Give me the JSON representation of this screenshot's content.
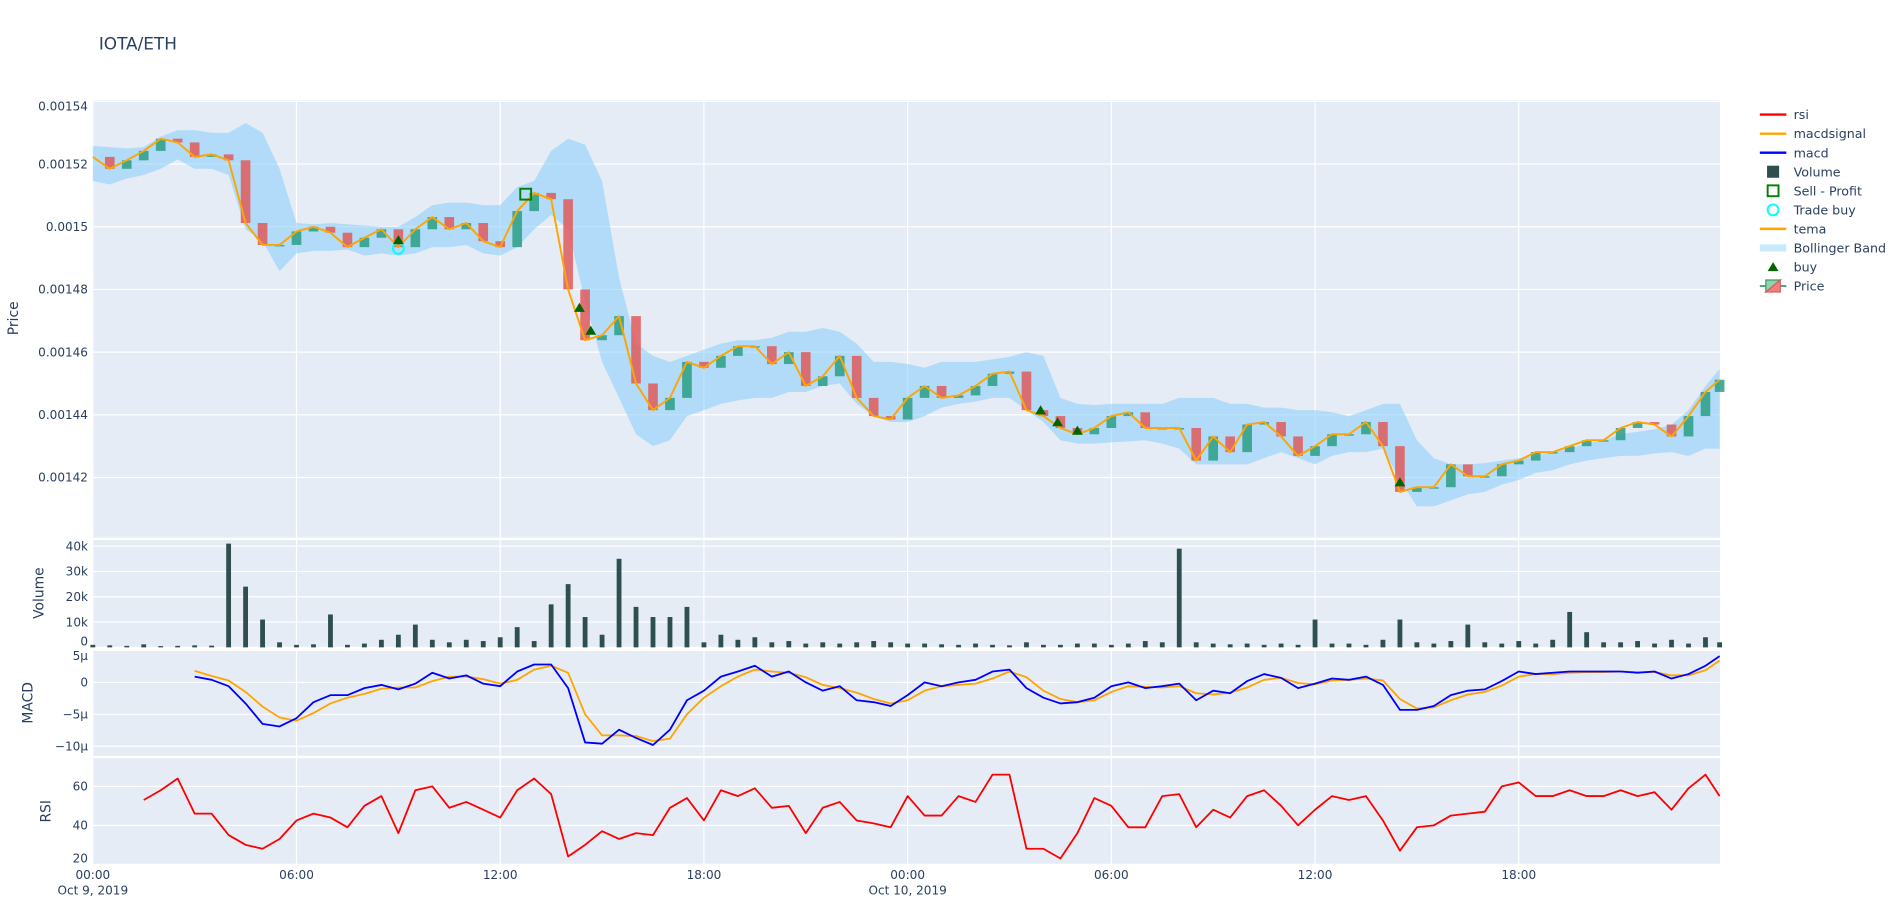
{
  "chart_data": {
    "type": "candlestick",
    "title": "IOTA/ETH",
    "axes": {
      "price": {
        "label": "Price",
        "ylim": [
          0.0014008,
          0.0015404
        ],
        "ticks": [
          0.00142,
          0.00144,
          0.00146,
          0.00148,
          0.0015,
          0.00152,
          0.00154
        ],
        "tick_labels": [
          "0.00142",
          "0.00144",
          "0.00146",
          "0.00148",
          "0.0015",
          "0.00152",
          "0.00154"
        ]
      },
      "volume": {
        "label": "Volume",
        "ylim": [
          0,
          42400
        ],
        "ticks": [
          0,
          10000,
          20000,
          30000,
          40000
        ],
        "tick_labels": [
          "0",
          "10k",
          "20k",
          "30k",
          "40k"
        ]
      },
      "macd": {
        "label": "MACD",
        "ylim": [
          -1.15e-05,
          5.1e-06
        ],
        "ticks": [
          -1e-05,
          -5e-06,
          0,
          5e-06
        ],
        "tick_labels": [
          "−10µ",
          "−5µ",
          "0",
          "5µ"
        ]
      },
      "rsi": {
        "label": "RSI",
        "ylim": [
          20,
          74.4
        ],
        "ticks": [
          20,
          40,
          60
        ],
        "tick_labels": [
          "20",
          "40",
          "60"
        ]
      },
      "x": {
        "ticks": [
          "2019-10-09 00:00",
          "2019-10-09 06:00",
          "2019-10-09 12:00",
          "2019-10-09 18:00",
          "2019-10-10 00:00",
          "2019-10-10 06:00",
          "2019-10-10 12:00",
          "2019-10-10 18:00"
        ],
        "tick_labels": [
          "00:00",
          "06:00",
          "12:00",
          "18:00",
          "00:00",
          "06:00",
          "12:00",
          "18:00"
        ],
        "tick_sublabels": [
          "Oct 9, 2019",
          "",
          "",
          "",
          "Oct 10, 2019",
          "",
          "",
          ""
        ]
      }
    },
    "grid": true,
    "legend_position": "right",
    "x": [
      "2019-10-09 00:00",
      "2019-10-09 00:30",
      "2019-10-09 01:00",
      "2019-10-09 01:30",
      "2019-10-09 02:00",
      "2019-10-09 02:30",
      "2019-10-09 03:00",
      "2019-10-09 03:30",
      "2019-10-09 04:00",
      "2019-10-09 04:30",
      "2019-10-09 05:00",
      "2019-10-09 05:30",
      "2019-10-09 06:00",
      "2019-10-09 06:30",
      "2019-10-09 07:00",
      "2019-10-09 07:30",
      "2019-10-09 08:00",
      "2019-10-09 08:30",
      "2019-10-09 09:00",
      "2019-10-09 09:30",
      "2019-10-09 10:00",
      "2019-10-09 10:30",
      "2019-10-09 11:00",
      "2019-10-09 11:30",
      "2019-10-09 12:00",
      "2019-10-09 12:30",
      "2019-10-09 13:00",
      "2019-10-09 13:30",
      "2019-10-09 14:00",
      "2019-10-09 14:30",
      "2019-10-09 15:00",
      "2019-10-09 15:30",
      "2019-10-09 16:00",
      "2019-10-09 16:30",
      "2019-10-09 17:00",
      "2019-10-09 17:30",
      "2019-10-09 18:00",
      "2019-10-09 18:30",
      "2019-10-09 19:00",
      "2019-10-09 19:30",
      "2019-10-09 20:00",
      "2019-10-09 20:30",
      "2019-10-09 21:00",
      "2019-10-09 21:30",
      "2019-10-09 22:00",
      "2019-10-09 22:30",
      "2019-10-09 23:00",
      "2019-10-09 23:30",
      "2019-10-10 00:00",
      "2019-10-10 00:30",
      "2019-10-10 01:00",
      "2019-10-10 01:30",
      "2019-10-10 02:00",
      "2019-10-10 02:30",
      "2019-10-10 03:00",
      "2019-10-10 03:30",
      "2019-10-10 04:00",
      "2019-10-10 04:30",
      "2019-10-10 05:00",
      "2019-10-10 05:30",
      "2019-10-10 06:00",
      "2019-10-10 06:30",
      "2019-10-10 07:00",
      "2019-10-10 07:30",
      "2019-10-10 08:00",
      "2019-10-10 08:30",
      "2019-10-10 09:00",
      "2019-10-10 09:30",
      "2019-10-10 10:00",
      "2019-10-10 10:30",
      "2019-10-10 11:00",
      "2019-10-10 11:30",
      "2019-10-10 12:00",
      "2019-10-10 12:30",
      "2019-10-10 13:00",
      "2019-10-10 13:30",
      "2019-10-10 14:00",
      "2019-10-10 14:30",
      "2019-10-10 15:00",
      "2019-10-10 15:30",
      "2019-10-10 16:00",
      "2019-10-10 16:30",
      "2019-10-10 17:00",
      "2019-10-10 17:30",
      "2019-10-10 18:00",
      "2019-10-10 18:30",
      "2019-10-10 19:00",
      "2019-10-10 19:30",
      "2019-10-10 20:00",
      "2019-10-10 20:30",
      "2019-10-10 21:00",
      "2019-10-10 21:30",
      "2019-10-10 22:00",
      "2019-10-10 22:30",
      "2019-10-10 23:00",
      "2019-10-10 23:30",
      "2019-10-10 23:55"
    ],
    "close": [
      0.0015223,
      0.0015185,
      0.0015212,
      0.0015242,
      0.0015281,
      0.0015269,
      0.0015223,
      0.0015231,
      0.0015212,
      0.0015012,
      0.0014942,
      0.0014942,
      0.0014985,
      0.0015,
      0.0014981,
      0.0014935,
      0.0014965,
      0.0014992,
      0.0014935,
      0.0014992,
      0.0015031,
      0.0014992,
      0.0015012,
      0.0014954,
      0.0014935,
      0.001505,
      0.0015108,
      0.0015088,
      0.00148,
      0.0014638,
      0.0014654,
      0.0014715,
      0.00145,
      0.0014415,
      0.0014454,
      0.0014569,
      0.001455,
      0.0014588,
      0.0014619,
      0.0014619,
      0.0014562,
      0.00146,
      0.0014492,
      0.0014523,
      0.0014588,
      0.0014454,
      0.0014396,
      0.0014385,
      0.0014454,
      0.0014492,
      0.0014454,
      0.0014462,
      0.0014492,
      0.0014531,
      0.0014538,
      0.0014415,
      0.0014396,
      0.0014358,
      0.0014338,
      0.0014358,
      0.0014396,
      0.0014408,
      0.0014358,
      0.0014358,
      0.0014358,
      0.0014254,
      0.0014331,
      0.0014281,
      0.0014369,
      0.0014377,
      0.0014331,
      0.0014269,
      0.00143,
      0.0014338,
      0.0014338,
      0.0014377,
      0.00143,
      0.0014154,
      0.0014169,
      0.0014169,
      0.0014242,
      0.0014204,
      0.0014204,
      0.0014242,
      0.0014254,
      0.0014281,
      0.0014281,
      0.00143,
      0.0014319,
      0.0014319,
      0.0014358,
      0.0014377,
      0.0014369,
      0.0014331,
      0.0014396,
      0.0014473,
      0.0014512
    ],
    "bollinger_upper": [
      0.0015258,
      0.0015254,
      0.001525,
      0.0015254,
      0.0015288,
      0.0015308,
      0.0015308,
      0.00153,
      0.00153,
      0.0015331,
      0.00153,
      0.0015185,
      0.0015012,
      0.0015008,
      0.0015012,
      0.0015008,
      0.0015004,
      0.0015,
      0.0015,
      0.0015031,
      0.0015069,
      0.0015077,
      0.0015077,
      0.0015069,
      0.0015069,
      0.0015127,
      0.0015146,
      0.0015242,
      0.0015281,
      0.0015262,
      0.0015146,
      0.0014838,
      0.0014627,
      0.0014588,
      0.0014569,
      0.0014588,
      0.0014608,
      0.0014627,
      0.0014638,
      0.0014638,
      0.0014646,
      0.0014665,
      0.0014665,
      0.0014677,
      0.0014665,
      0.0014627,
      0.0014569,
      0.0014569,
      0.0014562,
      0.001455,
      0.0014569,
      0.0014569,
      0.0014569,
      0.0014577,
      0.0014585,
      0.00146,
      0.0014588,
      0.0014454,
      0.0014435,
      0.0014431,
      0.0014435,
      0.0014435,
      0.0014435,
      0.0014435,
      0.0014454,
      0.0014454,
      0.0014454,
      0.0014435,
      0.0014435,
      0.0014423,
      0.0014423,
      0.0014415,
      0.0014415,
      0.0014408,
      0.0014396,
      0.0014415,
      0.0014435,
      0.0014435,
      0.0014319,
      0.0014262,
      0.0014242,
      0.0014242,
      0.0014246,
      0.0014254,
      0.0014262,
      0.0014269,
      0.0014281,
      0.0014292,
      0.0014308,
      0.0014319,
      0.0014338,
      0.0014346,
      0.0014354,
      0.0014369,
      0.0014415,
      0.0014492,
      0.0014546
    ],
    "bollinger_lower": [
      0.0015146,
      0.0015135,
      0.0015154,
      0.0015165,
      0.0015185,
      0.0015215,
      0.0015185,
      0.0015185,
      0.0015165,
      0.0014992,
      0.0014954,
      0.0014858,
      0.0014915,
      0.0014923,
      0.0014923,
      0.0014927,
      0.0014908,
      0.0014915,
      0.0014908,
      0.0014915,
      0.0014935,
      0.0014935,
      0.0014942,
      0.0014915,
      0.0014908,
      0.0014935,
      0.0014992,
      0.0015038,
      0.0014992,
      0.0014762,
      0.0014569,
      0.0014454,
      0.0014338,
      0.00143,
      0.0014319,
      0.0014396,
      0.0014415,
      0.0014435,
      0.0014446,
      0.0014454,
      0.0014454,
      0.0014473,
      0.0014473,
      0.0014492,
      0.00145,
      0.0014435,
      0.0014396,
      0.0014377,
      0.0014377,
      0.0014396,
      0.0014423,
      0.0014435,
      0.0014442,
      0.0014454,
      0.0014454,
      0.0014415,
      0.0014377,
      0.0014319,
      0.0014308,
      0.0014308,
      0.0014312,
      0.0014315,
      0.0014319,
      0.0014308,
      0.0014292,
      0.0014242,
      0.0014242,
      0.0014242,
      0.0014242,
      0.0014262,
      0.0014281,
      0.0014262,
      0.0014242,
      0.0014269,
      0.0014281,
      0.0014281,
      0.0014292,
      0.0014192,
      0.0014108,
      0.0014108,
      0.0014127,
      0.0014146,
      0.0014154,
      0.0014177,
      0.0014192,
      0.0014215,
      0.0014223,
      0.0014242,
      0.0014254,
      0.0014262,
      0.0014269,
      0.0014269,
      0.0014277,
      0.0014281,
      0.0014269,
      0.0014292,
      0.0014292
    ],
    "volume": [
      1000,
      800,
      600,
      1200,
      500,
      600,
      800,
      700,
      41000,
      24000,
      11000,
      2000,
      1000,
      1200,
      13000,
      1000,
      1500,
      3000,
      5000,
      9000,
      3000,
      2000,
      3000,
      2500,
      4000,
      8000,
      2500,
      17000,
      25000,
      12000,
      5000,
      35000,
      16000,
      12000,
      12000,
      16000,
      2000,
      5000,
      3000,
      4000,
      2000,
      2500,
      1500,
      2000,
      1500,
      2000,
      2500,
      2000,
      1500,
      1500,
      1200,
      1000,
      1500,
      1000,
      800,
      2000,
      1000,
      1000,
      1500,
      1500,
      1000,
      1500,
      2500,
      2000,
      39000,
      2000,
      1500,
      1200,
      1500,
      1000,
      1500,
      1000,
      11000,
      1500,
      1500,
      1000,
      3000,
      11000,
      2000,
      1500,
      2500,
      9000,
      2000,
      1500,
      2500,
      1500,
      3000,
      14000,
      6000,
      2000,
      2000,
      2500,
      1500,
      3000,
      1500,
      4000,
      2000
    ],
    "macd": [
      null,
      null,
      null,
      null,
      null,
      null,
      9e-07,
      4e-07,
      -6e-07,
      -3.3e-06,
      -6.5e-06,
      -6.9e-06,
      -5.6e-06,
      -3.1e-06,
      -2e-06,
      -2e-06,
      -9e-07,
      -4e-07,
      -1.1e-06,
      -2e-07,
      1.5e-06,
      6e-07,
      1.1e-06,
      -2e-07,
      -6e-07,
      1.7e-06,
      2.8e-06,
      2.8e-06,
      -9e-07,
      -9.4e-06,
      -9.6e-06,
      -7.4e-06,
      -8.7e-06,
      -9.8e-06,
      -7.4e-06,
      -2.8e-06,
      -1.3e-06,
      9e-07,
      1.7e-06,
      2.6e-06,
      9e-07,
      1.7e-06,
      0,
      -1.3e-06,
      -6e-07,
      -2.8e-06,
      -3.1e-06,
      -3.7e-06,
      -2e-06,
      0,
      -6e-07,
      0,
      4e-07,
      1.7e-06,
      2e-06,
      -9e-07,
      -2.4e-06,
      -3.3e-06,
      -3.1e-06,
      -2.4e-06,
      -6e-07,
      0,
      -9e-07,
      -6e-07,
      -2e-07,
      -2.8e-06,
      -1.3e-06,
      -1.7e-06,
      2e-07,
      1.3e-06,
      7e-07,
      -9e-07,
      -2e-07,
      6e-07,
      4e-07,
      9e-07,
      -4e-07,
      -4.3e-06,
      -4.3e-06,
      -3.7e-06,
      -2e-06,
      -1.3e-06,
      -1.1e-06,
      2e-07,
      1.7e-06,
      1.3e-06,
      1.5e-06,
      1.7e-06,
      1.7e-06,
      1.7e-06,
      1.7e-06,
      1.5e-06,
      1.7e-06,
      6e-07,
      1.3e-06,
      2.6e-06,
      4.1e-06
    ],
    "macdsignal": [
      null,
      null,
      null,
      null,
      null,
      null,
      1.8e-06,
      1e-06,
      3e-07,
      -1.5e-06,
      -3.8e-06,
      -5.5e-06,
      -6e-06,
      -4.8e-06,
      -3.3e-06,
      -2.4e-06,
      -1.8e-06,
      -1e-06,
      -8e-07,
      -8e-07,
      2e-07,
      9e-07,
      9e-07,
      5e-07,
      -2e-07,
      4e-07,
      2e-06,
      2.6e-06,
      1.5e-06,
      -5e-06,
      -8.3e-06,
      -8.3e-06,
      -8.4e-06,
      -9.2e-06,
      -8.8e-06,
      -5e-06,
      -2.4e-06,
      -6e-07,
      9e-07,
      2e-06,
      1.7e-06,
      1.5e-06,
      8e-07,
      -4e-07,
      -9e-07,
      -1.6e-06,
      -2.6e-06,
      -3.3e-06,
      -2.8e-06,
      -1.3e-06,
      -6e-07,
      -4e-07,
      -2e-07,
      6e-07,
      1.7e-06,
      8e-07,
      -1.3e-06,
      -2.6e-06,
      -3.1e-06,
      -2.8e-06,
      -1.5e-06,
      -6e-07,
      -7e-07,
      -8e-07,
      -6e-07,
      -1.7e-06,
      -1.9e-06,
      -1.6e-06,
      -8e-07,
      4e-07,
      7e-07,
      -1e-07,
      -3e-07,
      3e-07,
      4e-07,
      6e-07,
      3e-07,
      -2.6e-06,
      -4.1e-06,
      -3.9e-06,
      -2.8e-06,
      -1.9e-06,
      -1.5e-06,
      -5e-07,
      9e-07,
      1.3e-06,
      1.3e-06,
      1.5e-06,
      1.6e-06,
      1.6e-06,
      1.7e-06,
      1.6e-06,
      1.6e-06,
      1.1e-06,
      1.1e-06,
      1.9e-06,
      3.4e-06
    ],
    "rsi": [
      null,
      null,
      null,
      53,
      58,
      64,
      46,
      46,
      35,
      30,
      28,
      33,
      42.5,
      46,
      44,
      39,
      50,
      55,
      36,
      58,
      60,
      49,
      52,
      48,
      44,
      58,
      64,
      56,
      24,
      30,
      37,
      33,
      36,
      35,
      49,
      54,
      42.5,
      58,
      55,
      59,
      49,
      50,
      36,
      49,
      52,
      42.5,
      41,
      39,
      55,
      45,
      45,
      55,
      52,
      66,
      66,
      28,
      28,
      23,
      36,
      54,
      50,
      39,
      39,
      55,
      56,
      39,
      48,
      44,
      55,
      58,
      50,
      40,
      48,
      55,
      53,
      55,
      42.5,
      27,
      39,
      40,
      45,
      46,
      47,
      60,
      62,
      55,
      55,
      58,
      55,
      55,
      58,
      55,
      57,
      48,
      59,
      66,
      55
    ],
    "markers": {
      "buy": [
        {
          "t": "2019-10-09 09:00",
          "price": 0.0014958
        },
        {
          "t": "2019-10-09 14:20",
          "price": 0.0014742
        },
        {
          "t": "2019-10-09 14:40",
          "price": 0.0014669
        },
        {
          "t": "2019-10-10 03:55",
          "price": 0.0014415
        },
        {
          "t": "2019-10-10 04:25",
          "price": 0.0014377
        },
        {
          "t": "2019-10-10 05:00",
          "price": 0.001435
        },
        {
          "t": "2019-10-10 14:30",
          "price": 0.0014185
        }
      ],
      "trade_buy": [
        {
          "t": "2019-10-09 09:00",
          "price": 0.0014931
        }
      ],
      "sell_profit": [
        {
          "t": "2019-10-09 12:45",
          "price": 0.0015104
        }
      ]
    },
    "colors": {
      "increasing": "#2b9e84",
      "decreasing": "#e05a5a",
      "tema": "#FFA500",
      "bollinger": "#87CEFA",
      "volume": "#2F4F4F",
      "macd": "#0000FF",
      "macdsignal": "#FFA500",
      "rsi": "#FF0000",
      "buy": "#006400",
      "sell_profit": "#008000",
      "trade_buy": "#00FFFF",
      "plot_bg": "#E5ECF6",
      "grid": "#FFFFFF"
    },
    "legend": [
      {
        "label": "rsi",
        "symbol": "line",
        "color": "#FF0000"
      },
      {
        "label": "macdsignal",
        "symbol": "line",
        "color": "#FFA500"
      },
      {
        "label": "macd",
        "symbol": "line",
        "color": "#0000FF"
      },
      {
        "label": "Volume",
        "symbol": "square",
        "color": "#2F4F4F"
      },
      {
        "label": "Sell - Profit",
        "symbol": "square-open",
        "color": "#008000"
      },
      {
        "label": "Trade buy",
        "symbol": "circle-open",
        "color": "#00FFFF"
      },
      {
        "label": "tema",
        "symbol": "line",
        "color": "#FFA500"
      },
      {
        "label": "Bollinger Band",
        "symbol": "band",
        "color": "#87CEFA"
      },
      {
        "label": "buy",
        "symbol": "triangle-up",
        "color": "#006400"
      },
      {
        "label": "Price",
        "symbol": "candle",
        "color": "#2b9e84"
      }
    ]
  }
}
